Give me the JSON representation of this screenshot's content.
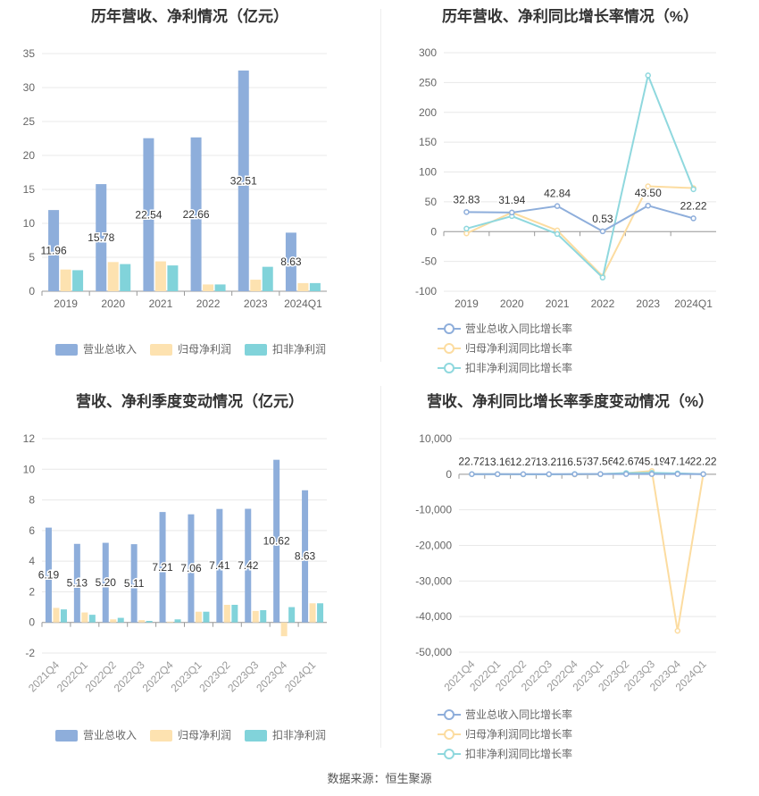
{
  "source": "数据来源：恒生聚源",
  "colors": {
    "revenue": "#8eaedb",
    "net_profit": "#fde2b0",
    "deducted_profit": "#81d3da",
    "rev_growth_line": "#8eaedb",
    "np_growth_line": "#fcdca0",
    "dp_growth_line": "#8fd8de"
  },
  "chart_data": [
    {
      "id": "annual_values",
      "type": "bar",
      "title": "历年营收、净利情况（亿元）",
      "categories": [
        "2019",
        "2020",
        "2021",
        "2022",
        "2023",
        "2024Q1"
      ],
      "series": [
        {
          "name": "营业总收入",
          "values": [
            11.96,
            15.78,
            22.54,
            22.66,
            32.51,
            8.63
          ],
          "labels": [
            "11.96",
            "15.78",
            "22.54",
            "22.66",
            "32.51",
            "8.63"
          ]
        },
        {
          "name": "归母净利润",
          "values": [
            3.2,
            4.3,
            4.4,
            1.0,
            1.7,
            1.2
          ]
        },
        {
          "name": "扣非净利润",
          "values": [
            3.1,
            4.0,
            3.8,
            1.0,
            3.6,
            1.2
          ]
        }
      ],
      "ylim": [
        0,
        35
      ],
      "yticks": [
        "0",
        "5",
        "10",
        "15",
        "20",
        "25",
        "30",
        "35"
      ],
      "grid": true,
      "legend": "bottom"
    },
    {
      "id": "annual_growth",
      "type": "line",
      "title": "历年营收、净利同比增长率情况（%）",
      "categories": [
        "2019",
        "2020",
        "2021",
        "2022",
        "2023",
        "2024Q1"
      ],
      "series": [
        {
          "name": "营业总收入同比增长率",
          "values": [
            32.83,
            31.94,
            42.84,
            0.53,
            43.5,
            22.22
          ],
          "labels": [
            "32.83",
            "31.94",
            "42.84",
            "0.53",
            "43.50",
            "22.22"
          ]
        },
        {
          "name": "归母净利润同比增长率",
          "values": [
            -3,
            32,
            2,
            -75,
            76,
            73
          ]
        },
        {
          "name": "扣非净利润同比增长率",
          "values": [
            5,
            26,
            -4,
            -77,
            262,
            71
          ]
        }
      ],
      "ylim": [
        -100,
        300
      ],
      "yticks": [
        "-100",
        "-50",
        "0",
        "50",
        "100",
        "150",
        "200",
        "250",
        "300"
      ],
      "grid": true,
      "legend": "bottom"
    },
    {
      "id": "quarterly_values",
      "type": "bar",
      "title": "营收、净利季度变动情况（亿元）",
      "categories": [
        "2021Q4",
        "2022Q1",
        "2022Q2",
        "2022Q3",
        "2022Q4",
        "2023Q1",
        "2023Q2",
        "2023Q3",
        "2023Q4",
        "2024Q1"
      ],
      "series": [
        {
          "name": "营业总收入",
          "values": [
            6.19,
            5.13,
            5.2,
            5.11,
            7.21,
            7.06,
            7.41,
            7.42,
            10.62,
            8.63
          ],
          "labels": [
            "6.19",
            "5.13",
            "5.20",
            "5.11",
            "7.21",
            "7.06",
            "7.41",
            "7.42",
            "10.62",
            "8.63"
          ]
        },
        {
          "name": "归母净利润",
          "values": [
            0.95,
            0.65,
            0.2,
            0.15,
            0.05,
            0.7,
            1.15,
            0.75,
            -0.9,
            1.25
          ]
        },
        {
          "name": "扣非净利润",
          "values": [
            0.85,
            0.5,
            0.3,
            0.1,
            0.2,
            0.7,
            1.15,
            0.8,
            1.0,
            1.25
          ]
        }
      ],
      "ylim": [
        -2,
        12
      ],
      "yticks": [
        "-2",
        "0",
        "2",
        "4",
        "6",
        "8",
        "10",
        "12"
      ],
      "grid": true,
      "legend": "bottom"
    },
    {
      "id": "quarterly_growth",
      "type": "line",
      "title": "营收、净利同比增长率季度变动情况（%）",
      "categories": [
        "2021Q4",
        "2022Q1",
        "2022Q2",
        "2022Q3",
        "2022Q4",
        "2023Q1",
        "2023Q2",
        "2023Q3",
        "2023Q4",
        "2024Q1"
      ],
      "series": [
        {
          "name": "营业总收入同比增长率",
          "values": [
            22.72,
            13.16,
            12.27,
            13.21,
            16.57,
            37.56,
            42.67,
            45.19,
            47.14,
            22.22
          ],
          "labels": [
            "22.72",
            "13.16",
            "12.27",
            "13.21",
            "16.57",
            "37.56",
            "42.67",
            "45.19",
            "47.14",
            "22.22"
          ]
        },
        {
          "name": "归母净利润同比增长率",
          "values": [
            20,
            10,
            -30,
            -50,
            -60,
            30,
            300,
            900,
            -44000,
            30
          ]
        },
        {
          "name": "扣非净利润同比增长率",
          "values": [
            18,
            8,
            -20,
            -40,
            60,
            40,
            350,
            400,
            250,
            25
          ]
        }
      ],
      "ylim": [
        -50000,
        10000
      ],
      "yticks": [
        "-50,000",
        "-40,000",
        "-30,000",
        "-20,000",
        "-10,000",
        "0",
        "10,000"
      ],
      "grid": true,
      "legend": "bottom"
    }
  ]
}
